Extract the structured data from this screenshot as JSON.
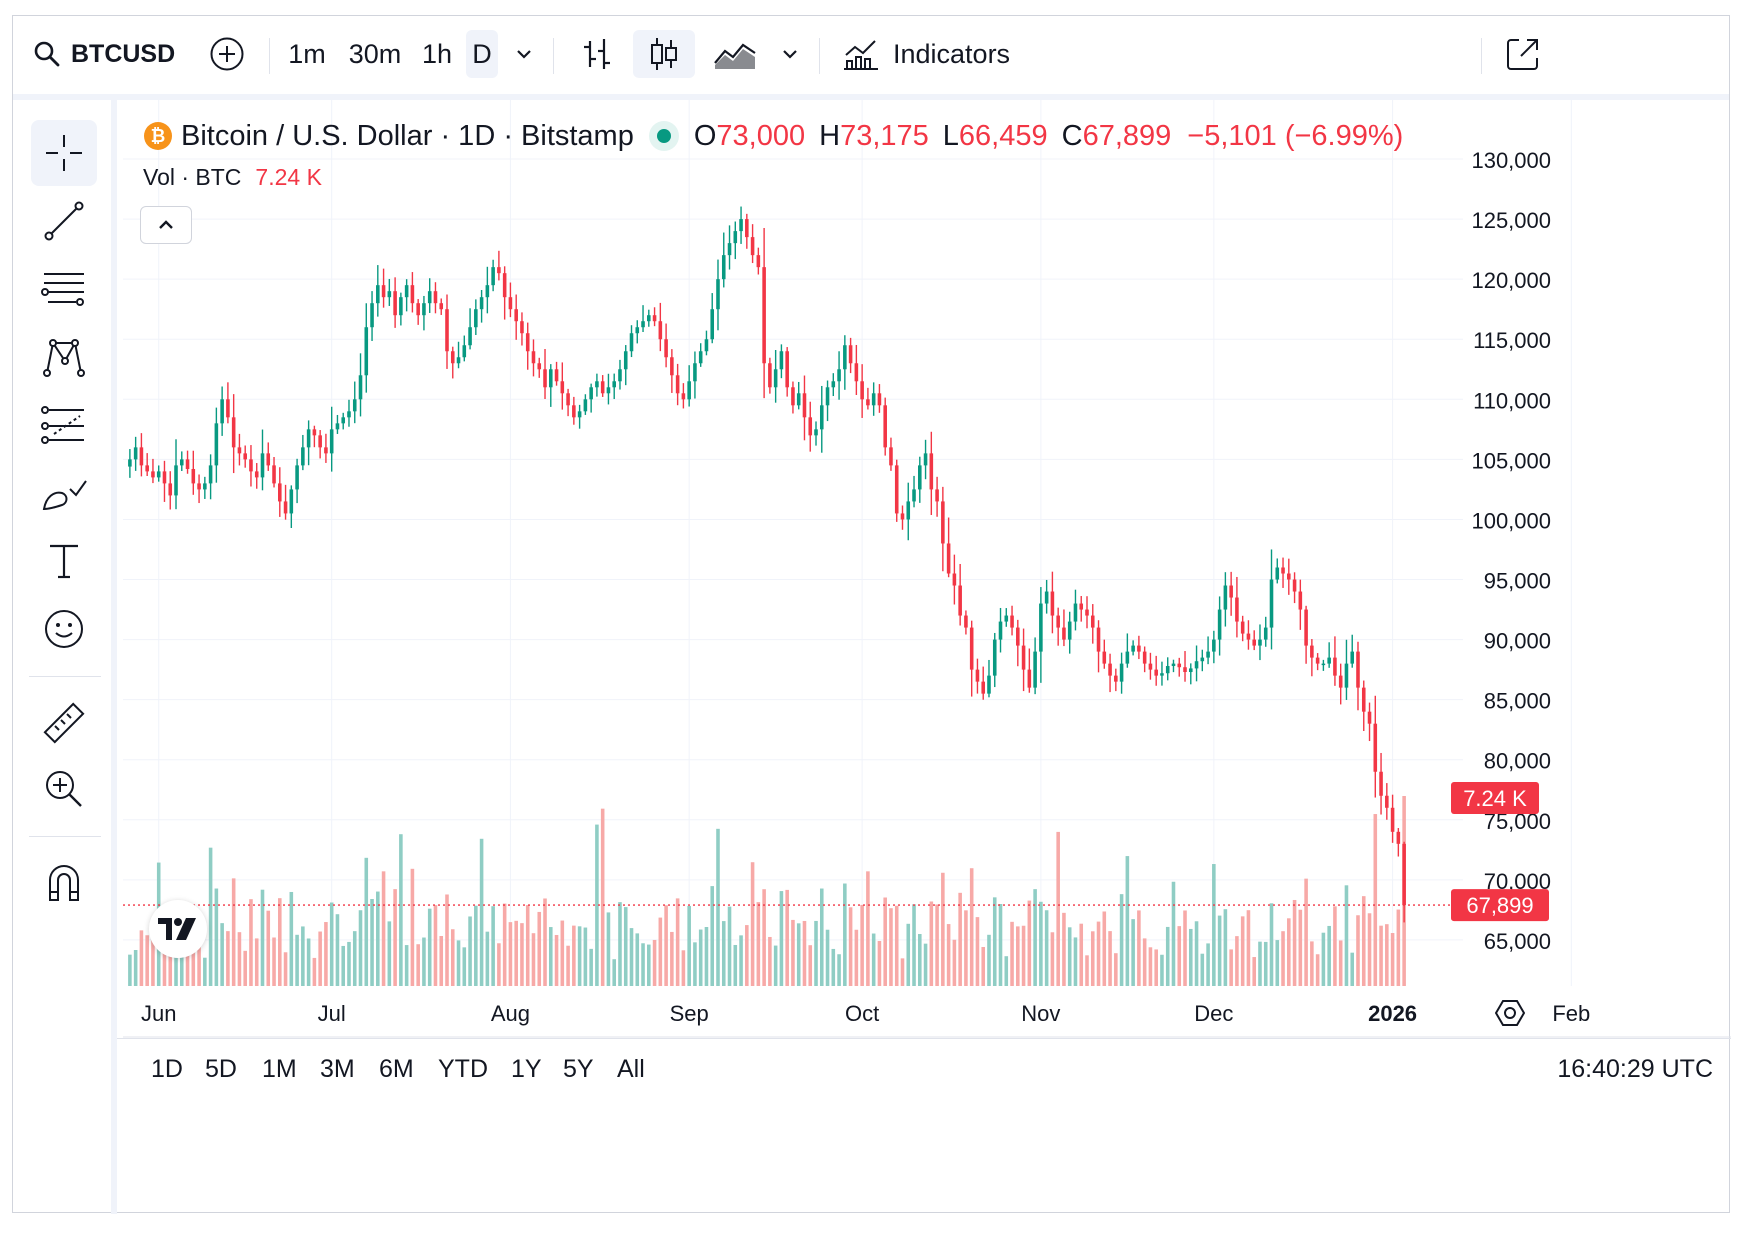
{
  "toolbar": {
    "symbol": "BTCUSD",
    "intervals": [
      "1m",
      "30m",
      "1h",
      "D"
    ],
    "active_interval": "D",
    "indicators_label": "Indicators"
  },
  "legend": {
    "title": "Bitcoin / U.S. Dollar · 1D · Bitstamp",
    "o_key": "O",
    "o_val": "73,000",
    "h_key": "H",
    "h_val": "73,175",
    "l_key": "L",
    "l_val": "66,459",
    "c_key": "C",
    "c_val": "67,899",
    "change": "−5,101 (−6.99%)",
    "vol_label": "Vol · BTC",
    "vol_value": "7.24 K"
  },
  "colors": {
    "up": "#089981",
    "down": "#f23645",
    "up_vol": "#8fcdc4",
    "down_vol": "#f7a9a7",
    "bitcoin": "#f7931a"
  },
  "chart_data": {
    "type": "candlestick",
    "title": "Bitcoin / U.S. Dollar · 1D · Bitstamp",
    "ylim": [
      60000,
      132000
    ],
    "y_ticks": [
      65000,
      70000,
      75000,
      80000,
      85000,
      90000,
      95000,
      100000,
      105000,
      110000,
      115000,
      120000,
      125000,
      130000
    ],
    "y_tick_labels": [
      "65,000",
      "70,000",
      "75,000",
      "80,000",
      "85,000",
      "90,000",
      "95,000",
      "100,000",
      "105,000",
      "110,000",
      "115,000",
      "120,000",
      "125,000",
      "130,000"
    ],
    "x_labels": [
      "Jun",
      "Jul",
      "Aug",
      "Sep",
      "Oct",
      "Nov",
      "Dec",
      "2026",
      "Feb"
    ],
    "x_label_day_index": [
      5,
      35,
      66,
      97,
      127,
      158,
      188,
      219,
      250
    ],
    "bold_x_label": "2026",
    "close_series": [
      105000,
      106000,
      104500,
      104000,
      103500,
      104000,
      103000,
      102000,
      104500,
      105000,
      104200,
      103000,
      102500,
      103000,
      104500,
      108000,
      110000,
      108500,
      106000,
      105500,
      105000,
      104000,
      103500,
      105500,
      104500,
      103000,
      101500,
      100500,
      102500,
      104500,
      106000,
      107500,
      107000,
      106000,
      105500,
      107500,
      108000,
      108500,
      109000,
      110000,
      112000,
      116000,
      118000,
      119500,
      118500,
      119000,
      117000,
      118500,
      119500,
      118000,
      117000,
      118000,
      119000,
      118000,
      117500,
      114000,
      113000,
      113500,
      114500,
      116000,
      117500,
      118500,
      119500,
      121000,
      120500,
      118500,
      117500,
      116500,
      115500,
      114000,
      113000,
      112500,
      111000,
      112500,
      111500,
      110500,
      109500,
      108500,
      109000,
      110000,
      111000,
      111500,
      110500,
      111000,
      111500,
      112500,
      114000,
      115500,
      116000,
      116500,
      117000,
      116500,
      115000,
      113500,
      112000,
      110500,
      110000,
      111500,
      113000,
      114000,
      115000,
      117500,
      120000,
      122000,
      123000,
      124000,
      125000,
      123500,
      122000,
      121000,
      113000,
      111000,
      112500,
      114000,
      111000,
      109500,
      110500,
      108500,
      107000,
      107500,
      109500,
      111000,
      111500,
      112500,
      114500,
      113000,
      111500,
      110000,
      109500,
      110500,
      109500,
      106000,
      104500,
      100500,
      100000,
      101500,
      102500,
      104500,
      105500,
      102500,
      101500,
      98000,
      95500,
      94500,
      92000,
      91000,
      87500,
      86500,
      85500,
      87000,
      90000,
      91500,
      92000,
      91000,
      89500,
      87500,
      86000,
      89000,
      93000,
      94000,
      92000,
      91000,
      90000,
      91500,
      93000,
      92500,
      92000,
      91000,
      89000,
      88000,
      87000,
      86500,
      88000,
      89000,
      89500,
      89000,
      88000,
      87500,
      87000,
      87200,
      87800,
      88000,
      87700,
      87300,
      87600,
      88200,
      88500,
      89000,
      90000,
      92500,
      94500,
      93500,
      91500,
      90500,
      90000,
      89500,
      90000,
      91000,
      95000,
      96000,
      95500,
      95000,
      94000,
      92500,
      89500,
      88500,
      88000,
      88000,
      88500,
      87000,
      86000,
      88000,
      89000,
      86000,
      84000,
      83000,
      79000,
      77000,
      76000,
      74000,
      73000,
      67899
    ],
    "last_price_label": "67,899",
    "last_volume_label": "7.24 K",
    "volume_scale": "BTC",
    "current_open": 73000,
    "current_high": 73175,
    "current_low": 66459,
    "current_close": 67899
  },
  "bottom": {
    "ranges": [
      "1D",
      "5D",
      "1M",
      "3M",
      "6M",
      "YTD",
      "1Y",
      "5Y",
      "All"
    ],
    "time": "16:40:29 UTC"
  }
}
